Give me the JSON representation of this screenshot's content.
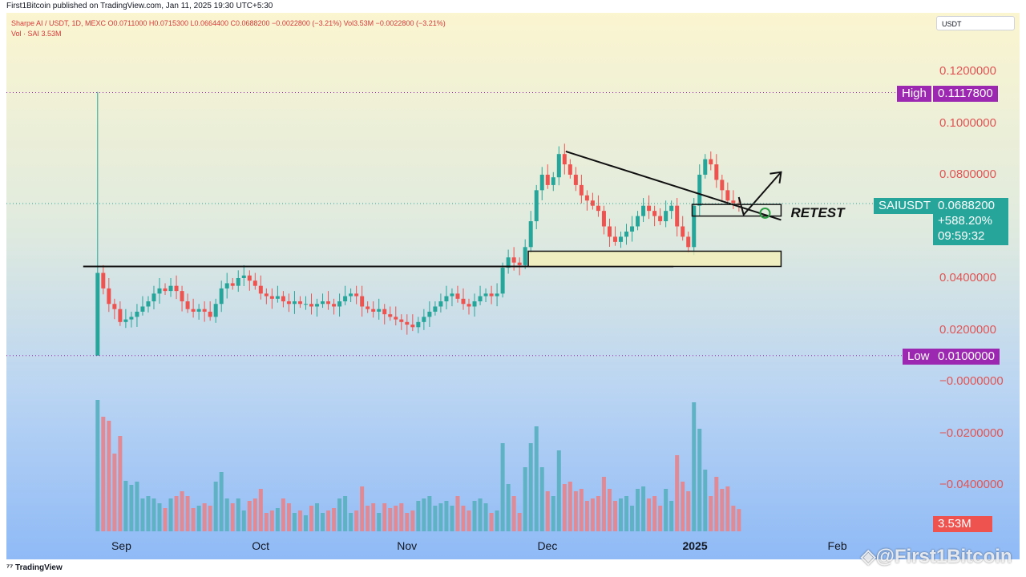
{
  "header": {
    "publisher": "First1Bitcoin published on TradingView.com, Jan 11, 2025 19:30 UTC+5:30",
    "symbol_line": "Sharpe AI / USDT, 1D, MEXC  O0.0711000  H0.0715300  L0.0664400  C0.0688200  −0.0022800 (−3.21%)  Vol3.53M  −0.0022800 (−3.21%)",
    "vol_line": "Vol · SAI  3.53M",
    "currency": "USDT"
  },
  "footer": {
    "brand": "TradingView",
    "watermark": "@First1Bitcoin",
    "watermark_icon": "binance-logo-icon"
  },
  "colors": {
    "up": "#26a69a",
    "down": "#ef5350",
    "vol_up": "#5fb2c4",
    "vol_down": "#e08a95",
    "high_low": "#9c27b0",
    "price_tag": "#26a69a",
    "vol_tag": "#ef5350"
  },
  "chart_data": {
    "type": "candlestick",
    "pair": "Sharpe AI / USDT",
    "timeframe": "1D",
    "exchange": "MEXC",
    "ohlc": {
      "open": "0.0711000",
      "high": "0.0715300",
      "low": "0.0664400",
      "close": "0.0688200",
      "change": "−0.0022800 (−3.21%)",
      "volume": "3.53M"
    },
    "y_ticks": [
      "0.1200000",
      "0.1000000",
      "0.0800000",
      "0.0400000",
      "0.0200000",
      "−0.0000000",
      "−0.0200000",
      "−0.0400000"
    ],
    "y_tick_values": [
      0.12,
      0.1,
      0.08,
      0.04,
      0.02,
      0.0,
      -0.02,
      -0.04
    ],
    "x_ticks": [
      "Sep",
      "Oct",
      "Nov",
      "Dec",
      "2025",
      "Feb"
    ],
    "x_tick_dates": [
      "2024-09-01",
      "2024-10-01",
      "2024-11-01",
      "2024-12-01",
      "2025-01-01",
      "2025-02-01"
    ],
    "high": {
      "label": "High",
      "value": "0.1117800"
    },
    "low": {
      "label": "Low",
      "value": "0.0100000"
    },
    "last": {
      "symbol": "SAIUSDT",
      "price": "0.0688200",
      "change": "+588.20%",
      "countdown": "09:59:32"
    },
    "volume_label": "3.53M",
    "close_series": [
      0.042,
      0.036,
      0.03,
      0.028,
      0.023,
      0.024,
      0.025,
      0.027,
      0.029,
      0.031,
      0.034,
      0.036,
      0.035,
      0.037,
      0.035,
      0.031,
      0.028,
      0.027,
      0.028,
      0.027,
      0.025,
      0.03,
      0.036,
      0.038,
      0.037,
      0.04,
      0.041,
      0.039,
      0.037,
      0.034,
      0.033,
      0.032,
      0.033,
      0.031,
      0.03,
      0.031,
      0.03,
      0.03,
      0.029,
      0.03,
      0.031,
      0.03,
      0.029,
      0.031,
      0.033,
      0.034,
      0.033,
      0.029,
      0.028,
      0.027,
      0.028,
      0.026,
      0.025,
      0.024,
      0.023,
      0.022,
      0.021,
      0.023,
      0.025,
      0.027,
      0.029,
      0.031,
      0.033,
      0.034,
      0.032,
      0.03,
      0.029,
      0.031,
      0.033,
      0.034,
      0.033,
      0.034,
      0.044,
      0.048,
      0.046,
      0.045,
      0.052,
      0.062,
      0.074,
      0.08,
      0.076,
      0.079,
      0.088,
      0.084,
      0.08,
      0.076,
      0.072,
      0.07,
      0.068,
      0.066,
      0.06,
      0.056,
      0.054,
      0.056,
      0.058,
      0.06,
      0.064,
      0.068,
      0.066,
      0.064,
      0.062,
      0.066,
      0.068,
      0.06,
      0.056,
      0.052,
      0.068,
      0.08,
      0.086,
      0.084,
      0.078,
      0.074,
      0.07,
      0.069,
      0.0688
    ],
    "annotations": [
      {
        "type": "horizontal-support",
        "value": 0.0445,
        "date_range": [
          "2024-08-27",
          "2024-12-28"
        ]
      },
      {
        "type": "demand-zone",
        "range": [
          0.0445,
          0.0504
        ],
        "date_range": [
          "2024-11-27",
          "2025-01-20"
        ]
      },
      {
        "type": "descending-trendline",
        "from": [
          "2024-12-05",
          0.089
        ],
        "to": [
          "2025-01-20",
          0.0625
        ]
      },
      {
        "type": "retest-box",
        "range": [
          0.064,
          0.0685
        ],
        "date_range": [
          "2025-01-01",
          "2025-01-20"
        ]
      },
      {
        "type": "projection-arrow",
        "from": [
          "2025-01-12",
          0.0645
        ],
        "to": [
          "2025-01-20",
          0.081
        ]
      },
      {
        "type": "text",
        "text": "RETEST"
      }
    ],
    "grid": false,
    "legend": "top-left"
  }
}
